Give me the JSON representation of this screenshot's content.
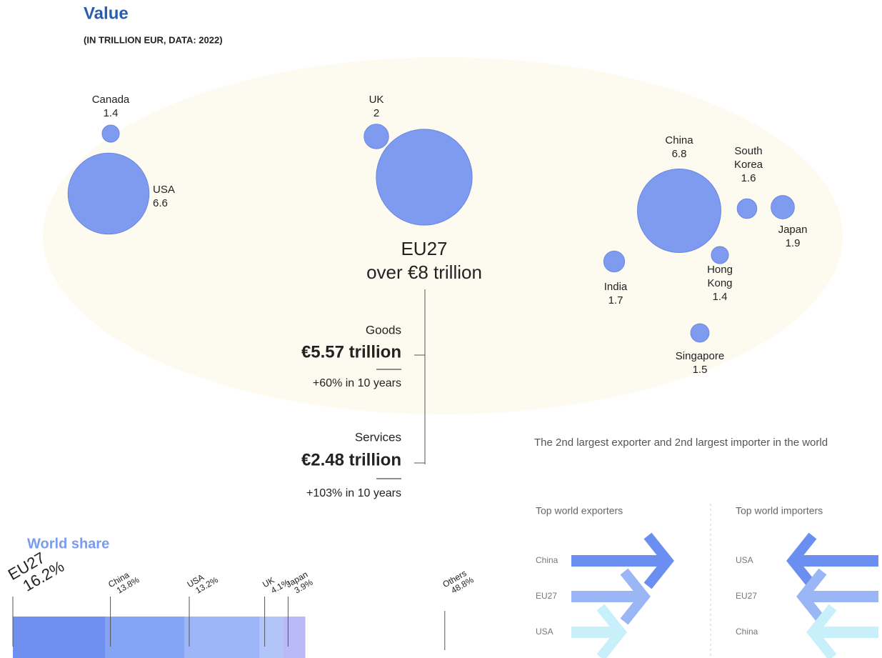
{
  "value_section": {
    "title": "Value",
    "subtitle": "(IN TRILLION EUR, DATA: 2022)",
    "bubbles": [
      {
        "name": "Canada",
        "value": 1.4
      },
      {
        "name": "USA",
        "value": 6.6
      },
      {
        "name": "UK",
        "value": 2
      },
      {
        "name": "China",
        "value": 6.8
      },
      {
        "name": "South Korea",
        "value": 1.6
      },
      {
        "name": "Japan",
        "value": 1.9
      },
      {
        "name": "India",
        "value": 1.7
      },
      {
        "name": "Hong Kong",
        "value": 1.4
      },
      {
        "name": "Singapore",
        "value": 1.5
      }
    ],
    "eu": {
      "name": "EU27",
      "label": "over €8 trillion"
    },
    "breakdown": [
      {
        "label": "Goods",
        "value": 5.57,
        "value_label": "€5.57 trillion",
        "growth": "+60% in 10 years"
      },
      {
        "label": "Services",
        "value": 2.48,
        "value_label": "€2.48 trillion",
        "growth": "+103% in 10 years"
      }
    ]
  },
  "world_share": {
    "title": "World share",
    "segments": [
      {
        "name": "EU27",
        "value": 16.2,
        "value_label": "16.2%",
        "color": "#7090f0"
      },
      {
        "name": "China",
        "value": 13.8,
        "value_label": "13.8%",
        "color": "#86a4f5"
      },
      {
        "name": "USA",
        "value": 13.2,
        "value_label": "13.2%",
        "color": "#9db6f7"
      },
      {
        "name": "UK",
        "value": 4.1,
        "value_label": "4.1%",
        "color": "#b2c5f8"
      },
      {
        "name": "Japan",
        "value": 3.9,
        "value_label": "3.9%",
        "color": "#b9b9f7"
      },
      {
        "name": "Others",
        "value": 48.8,
        "value_label": "48.8%",
        "color": "#ffffff"
      }
    ]
  },
  "ranking": {
    "heading": "The 2nd largest exporter and 2nd largest importer in the world",
    "exporters": {
      "title": "Top world exporters",
      "items": [
        "China",
        "EU27",
        "USA"
      ]
    },
    "importers": {
      "title": "Top world importers",
      "items": [
        "USA",
        "EU27",
        "China"
      ]
    }
  }
}
